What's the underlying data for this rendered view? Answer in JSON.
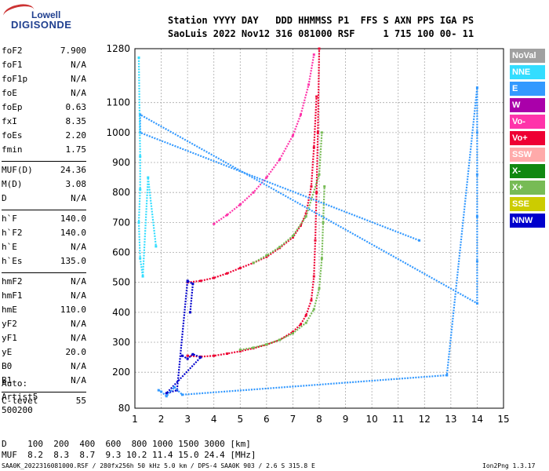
{
  "logo": {
    "line1": "Lowell",
    "line2": "DIGISONDE"
  },
  "header": {
    "line1": "Station YYYY DAY   DDD HHMMSS P1  FFS S AXN PPS IGA PS",
    "line2": "SaoLuis 2022 Nov12 316 081000 RSF     1 715 100 00- 11"
  },
  "parameters": [
    [
      {
        "name": "foF2",
        "value": "7.900"
      },
      {
        "name": "foF1",
        "value": "N/A"
      },
      {
        "name": "foF1p",
        "value": "N/A"
      },
      {
        "name": "foE",
        "value": "N/A"
      },
      {
        "name": "foEp",
        "value": "0.63"
      },
      {
        "name": "fxI",
        "value": "8.35"
      },
      {
        "name": "foEs",
        "value": "2.20"
      },
      {
        "name": "fmin",
        "value": "1.75"
      }
    ],
    [
      {
        "name": "MUF(D)",
        "value": "24.36"
      },
      {
        "name": "M(D)",
        "value": "3.08"
      },
      {
        "name": "D",
        "value": "N/A"
      }
    ],
    [
      {
        "name": "h`F",
        "value": "140.0"
      },
      {
        "name": "h`F2",
        "value": "140.0"
      },
      {
        "name": "h`E",
        "value": "N/A"
      },
      {
        "name": "h`Es",
        "value": "135.0"
      }
    ],
    [
      {
        "name": "hmF2",
        "value": "N/A"
      },
      {
        "name": "hmF1",
        "value": "N/A"
      },
      {
        "name": "hmE",
        "value": "110.0"
      },
      {
        "name": "yF2",
        "value": "N/A"
      },
      {
        "name": "yF1",
        "value": "N/A"
      },
      {
        "name": "yE",
        "value": "20.0"
      },
      {
        "name": "B0",
        "value": "N/A"
      },
      {
        "name": "B1",
        "value": "N/A"
      }
    ],
    [
      {
        "name": "C-level",
        "value": "55"
      }
    ]
  ],
  "auto": {
    "line1": "Auto:",
    "line2": "Artist5",
    "line3": "500200"
  },
  "distance_table": {
    "line1": "D    100  200  400  600  800 1000 1500 3000 [km]",
    "line2": "MUF  8.2  8.3  8.7  9.3 10.2 11.4 15.0 24.4 [MHz]"
  },
  "footer": {
    "left": "SAA0K_2022316081000.RSF / 280fx256h 50 kHz 5.0 km / DPS-4 SAA0K 903 / 2.6 S 315.8 E",
    "right": "Ion2Png 1.3.17"
  },
  "legend": [
    {
      "label": "NoVal",
      "color": "#a0a0a0"
    },
    {
      "label": "NNE",
      "color": "#33ddff"
    },
    {
      "label": "E",
      "color": "#3399ff"
    },
    {
      "label": "W",
      "color": "#aa00aa"
    },
    {
      "label": "Vo-",
      "color": "#ff33aa"
    },
    {
      "label": "Vo+",
      "color": "#ee0033"
    },
    {
      "label": "SSW",
      "color": "#ffaaaa"
    },
    {
      "label": "X-",
      "color": "#118811"
    },
    {
      "label": "X+",
      "color": "#77bb55"
    },
    {
      "label": "SSE",
      "color": "#cccc00"
    },
    {
      "label": "NNW",
      "color": "#0000cc"
    }
  ],
  "chart_data": {
    "type": "scatter",
    "title": "",
    "xlabel": "",
    "ylabel": "",
    "xlim": [
      1,
      15
    ],
    "ylim": [
      80,
      1280
    ],
    "x_ticks": [
      1,
      2,
      3,
      4,
      5,
      6,
      7,
      8,
      9,
      10,
      11,
      12,
      13,
      14,
      15
    ],
    "y_ticks": [
      80,
      200,
      300,
      400,
      500,
      600,
      700,
      800,
      900,
      1000,
      1100,
      1280
    ],
    "grid": true,
    "legend_placement": "right",
    "series": [
      {
        "key": "Vo+",
        "points": [
          [
            3.0,
            255
          ],
          [
            3.5,
            252
          ],
          [
            4.0,
            255
          ],
          [
            4.5,
            262
          ],
          [
            5.0,
            270
          ],
          [
            5.5,
            280
          ],
          [
            6.0,
            292
          ],
          [
            6.5,
            308
          ],
          [
            7.0,
            335
          ],
          [
            7.3,
            360
          ],
          [
            7.5,
            390
          ],
          [
            7.7,
            440
          ],
          [
            7.8,
            520
          ],
          [
            7.85,
            640
          ],
          [
            7.9,
            800
          ],
          [
            7.95,
            1000
          ],
          [
            8.0,
            1280
          ]
        ]
      },
      {
        "key": "Vo+",
        "points": [
          [
            3.0,
            500
          ],
          [
            3.5,
            505
          ],
          [
            4.0,
            515
          ],
          [
            4.5,
            530
          ],
          [
            5.0,
            548
          ],
          [
            5.5,
            565
          ],
          [
            6.0,
            585
          ],
          [
            6.5,
            615
          ],
          [
            7.0,
            650
          ],
          [
            7.3,
            690
          ],
          [
            7.5,
            730
          ],
          [
            7.7,
            820
          ],
          [
            7.8,
            950
          ],
          [
            7.9,
            1120
          ]
        ]
      },
      {
        "key": "Vo-",
        "points": [
          [
            4.0,
            695
          ],
          [
            4.5,
            725
          ],
          [
            5.0,
            760
          ],
          [
            5.5,
            800
          ],
          [
            6.0,
            850
          ],
          [
            6.5,
            910
          ],
          [
            7.0,
            990
          ],
          [
            7.3,
            1060
          ],
          [
            7.6,
            1160
          ],
          [
            7.8,
            1260
          ]
        ]
      },
      {
        "key": "X+",
        "points": [
          [
            5.0,
            275
          ],
          [
            5.5,
            282
          ],
          [
            6.0,
            293
          ],
          [
            6.5,
            308
          ],
          [
            7.0,
            330
          ],
          [
            7.5,
            365
          ],
          [
            7.8,
            410
          ],
          [
            8.0,
            480
          ],
          [
            8.1,
            580
          ],
          [
            8.15,
            700
          ],
          [
            8.2,
            820
          ]
        ]
      },
      {
        "key": "X+",
        "points": [
          [
            5.5,
            565
          ],
          [
            6.0,
            590
          ],
          [
            6.5,
            618
          ],
          [
            7.0,
            655
          ],
          [
            7.5,
            720
          ],
          [
            8.0,
            860
          ],
          [
            8.1,
            1000
          ]
        ]
      },
      {
        "key": "NNW",
        "points": [
          [
            2.8,
            255
          ],
          [
            3.0,
            245
          ],
          [
            3.2,
            260
          ],
          [
            3.5,
            250
          ],
          [
            2.2,
            130
          ],
          [
            2.6,
            140
          ],
          [
            3.0,
            505
          ],
          [
            3.2,
            495
          ],
          [
            3.1,
            400
          ]
        ]
      },
      {
        "key": "E",
        "points": [
          [
            1.9,
            140
          ],
          [
            2.0,
            135
          ],
          [
            2.2,
            120
          ],
          [
            2.5,
            150
          ],
          [
            2.8,
            125
          ],
          [
            12.85,
            190
          ],
          [
            14.0,
            1150
          ],
          [
            14.0,
            1000
          ],
          [
            14.0,
            860
          ],
          [
            14.0,
            720
          ],
          [
            14.0,
            570
          ],
          [
            14.0,
            430
          ],
          [
            1.2,
            1060
          ],
          [
            1.2,
            1000
          ],
          [
            11.8,
            640
          ]
        ]
      },
      {
        "key": "NNE",
        "points": [
          [
            1.15,
            1250
          ],
          [
            1.2,
            920
          ],
          [
            1.2,
            810
          ],
          [
            1.15,
            700
          ],
          [
            1.2,
            580
          ],
          [
            1.3,
            520
          ],
          [
            1.5,
            850
          ],
          [
            1.8,
            620
          ]
        ]
      }
    ]
  }
}
